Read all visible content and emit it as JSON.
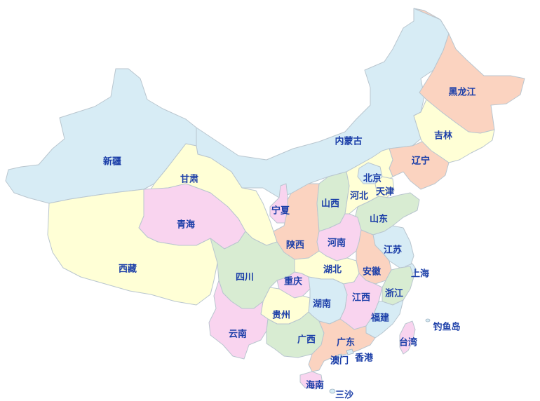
{
  "colors": {
    "blue": "#d7ecf5",
    "peach": "#fbd3c0",
    "yellow": "#ffffd6",
    "pink": "#f9d4ef",
    "green": "#d8ecd2",
    "label": "#1b3ea8",
    "border": "#b9c6cf",
    "island": "#a9bccb"
  },
  "provinces": [
    {
      "id": "heilongjiang",
      "label": "黑龙江",
      "color": "peach"
    },
    {
      "id": "jilin",
      "label": "吉林",
      "color": "yellow"
    },
    {
      "id": "liaoning",
      "label": "辽宁",
      "color": "peach"
    },
    {
      "id": "neimenggu",
      "label": "内蒙古",
      "color": "blue"
    },
    {
      "id": "xinjiang",
      "label": "新疆",
      "color": "blue"
    },
    {
      "id": "gansu",
      "label": "甘肃",
      "color": "yellow"
    },
    {
      "id": "qinghai",
      "label": "青海",
      "color": "pink"
    },
    {
      "id": "xizang",
      "label": "西藏",
      "color": "yellow"
    },
    {
      "id": "ningxia",
      "label": "宁夏",
      "color": "pink"
    },
    {
      "id": "shaanxi",
      "label": "陕西",
      "color": "peach"
    },
    {
      "id": "shanxi",
      "label": "山西",
      "color": "green"
    },
    {
      "id": "hebei",
      "label": "河北",
      "color": "yellow"
    },
    {
      "id": "beijing",
      "label": "北京",
      "color": "blue"
    },
    {
      "id": "tianjin",
      "label": "天津",
      "color": "yellow"
    },
    {
      "id": "shandong",
      "label": "山东",
      "color": "green"
    },
    {
      "id": "henan",
      "label": "河南",
      "color": "pink"
    },
    {
      "id": "jiangsu",
      "label": "江苏",
      "color": "blue"
    },
    {
      "id": "shanghai",
      "label": "上海",
      "color": "blue"
    },
    {
      "id": "anhui",
      "label": "安徽",
      "color": "peach"
    },
    {
      "id": "hubei",
      "label": "湖北",
      "color": "yellow"
    },
    {
      "id": "sichuan",
      "label": "四川",
      "color": "green"
    },
    {
      "id": "chongqing",
      "label": "重庆",
      "color": "pink"
    },
    {
      "id": "zhejiang",
      "label": "浙江",
      "color": "green"
    },
    {
      "id": "jiangxi",
      "label": "江西",
      "color": "pink"
    },
    {
      "id": "hunan",
      "label": "湖南",
      "color": "blue"
    },
    {
      "id": "guizhou",
      "label": "贵州",
      "color": "yellow"
    },
    {
      "id": "yunnan",
      "label": "云南",
      "color": "pink"
    },
    {
      "id": "guangxi",
      "label": "广西",
      "color": "green"
    },
    {
      "id": "guangdong",
      "label": "广东",
      "color": "peach"
    },
    {
      "id": "fujian",
      "label": "福建",
      "color": "blue"
    },
    {
      "id": "taiwan",
      "label": "台湾",
      "color": "pink"
    },
    {
      "id": "hainan",
      "label": "海南",
      "color": "pink"
    },
    {
      "id": "xianggang",
      "label": "香港",
      "color": "blue"
    },
    {
      "id": "aomen",
      "label": "澳门",
      "color": "blue"
    },
    {
      "id": "diaoyudao",
      "label": "钓鱼岛",
      "color": "blue"
    },
    {
      "id": "sansha",
      "label": "三沙",
      "color": "blue"
    }
  ]
}
